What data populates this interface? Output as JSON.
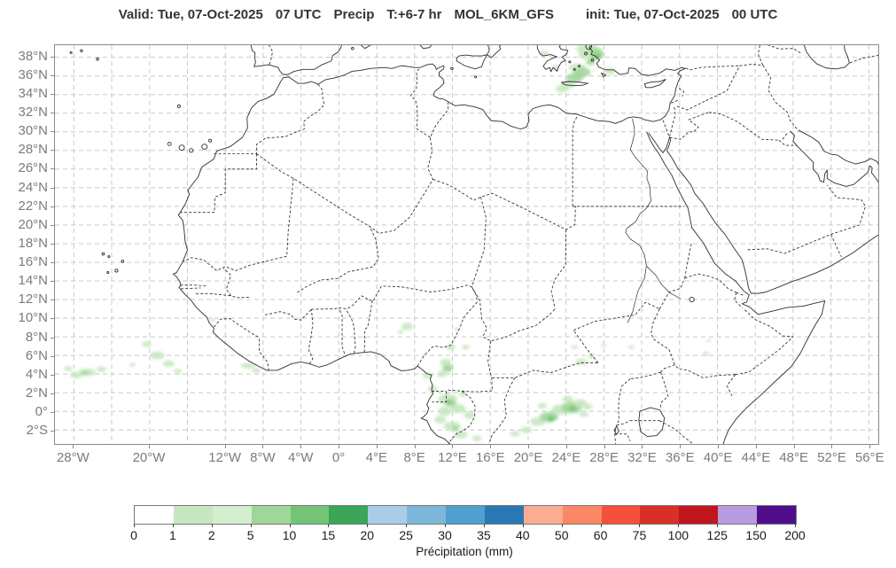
{
  "header": {
    "title_parts": [
      "Valid: Tue, 07-Oct-2025",
      "07 UTC",
      "Precip",
      "T:+6-7 hr",
      "MOL_6KM_GFS",
      "init: Tue, 07-Oct-2025",
      "00 UTC"
    ]
  },
  "map": {
    "lon_min": -30,
    "lon_max": 57,
    "lat_min": -3.5,
    "lat_max": 39.3,
    "grid_lons": [
      -28,
      -24,
      -20,
      -16,
      -12,
      -8,
      -4,
      0,
      4,
      8,
      12,
      16,
      20,
      24,
      28,
      32,
      36,
      40,
      44,
      48,
      52,
      56
    ],
    "grid_lats": [
      38,
      36,
      34,
      32,
      30,
      28,
      26,
      24,
      22,
      20,
      18,
      16,
      14,
      12,
      10,
      8,
      6,
      4,
      2,
      0,
      -2
    ],
    "x_ticks": [
      {
        "label": "28°W",
        "lon": -28
      },
      {
        "label": "20°W",
        "lon": -20
      },
      {
        "label": "12°W",
        "lon": -12
      },
      {
        "label": "8°W",
        "lon": -8
      },
      {
        "label": "4°W",
        "lon": -4
      },
      {
        "label": "0°",
        "lon": 0
      },
      {
        "label": "4°E",
        "lon": 4
      },
      {
        "label": "8°E",
        "lon": 8
      },
      {
        "label": "12°E",
        "lon": 12
      },
      {
        "label": "16°E",
        "lon": 16
      },
      {
        "label": "20°E",
        "lon": 20
      },
      {
        "label": "24°E",
        "lon": 24
      },
      {
        "label": "28°E",
        "lon": 28
      },
      {
        "label": "32°E",
        "lon": 32
      },
      {
        "label": "36°E",
        "lon": 36
      },
      {
        "label": "40°E",
        "lon": 40
      },
      {
        "label": "44°E",
        "lon": 44
      },
      {
        "label": "48°E",
        "lon": 48
      },
      {
        "label": "52°E",
        "lon": 52
      },
      {
        "label": "56°E",
        "lon": 56
      }
    ],
    "y_ticks": [
      {
        "label": "38°N",
        "lat": 38
      },
      {
        "label": "36°N",
        "lat": 36
      },
      {
        "label": "34°N",
        "lat": 34
      },
      {
        "label": "32°N",
        "lat": 32
      },
      {
        "label": "30°N",
        "lat": 30
      },
      {
        "label": "28°N",
        "lat": 28
      },
      {
        "label": "26°N",
        "lat": 26
      },
      {
        "label": "24°N",
        "lat": 24
      },
      {
        "label": "22°N",
        "lat": 22
      },
      {
        "label": "20°N",
        "lat": 20
      },
      {
        "label": "18°N",
        "lat": 18
      },
      {
        "label": "16°N",
        "lat": 16
      },
      {
        "label": "14°N",
        "lat": 14
      },
      {
        "label": "12°N",
        "lat": 12
      },
      {
        "label": "10°N",
        "lat": 10
      },
      {
        "label": "8°N",
        "lat": 8
      },
      {
        "label": "6°N",
        "lat": 6
      },
      {
        "label": "4°N",
        "lat": 4
      },
      {
        "label": "2°N",
        "lat": 2
      },
      {
        "label": "0°",
        "lat": 0
      },
      {
        "label": "2°S",
        "lat": -2
      }
    ],
    "colors": {
      "coastline": "#2e2e2e",
      "border": "#2a2a2a",
      "grid": "#c8c8c8",
      "frame": "#8a8a8a",
      "tick_text": "#7b7b7b"
    }
  },
  "colorbar": {
    "label": "Précipitation (mm)",
    "ticks": [
      "0",
      "1",
      "2",
      "5",
      "10",
      "15",
      "20",
      "25",
      "30",
      "35",
      "40",
      "50",
      "60",
      "75",
      "100",
      "125",
      "150",
      "200"
    ],
    "segment_colors": [
      "#ffffff",
      "#c7e7c0",
      "#d5eecd",
      "#9fd699",
      "#74c476",
      "#3ba558",
      "#a9cde7",
      "#7db8da",
      "#4f9fd0",
      "#2a77b5",
      "#fcac90",
      "#fb8767",
      "#f4503a",
      "#da2f27",
      "#c0161d",
      "#b79ce0",
      "#500e8c"
    ]
  },
  "chart_data": {
    "type": "heatmap",
    "title": "Precipitation forecast map, MOL_6KM_GFS, T:+6-7 hr",
    "units": "mm",
    "scale_bounds": [
      0,
      1,
      2,
      5,
      10,
      15,
      20,
      25,
      30,
      35,
      40,
      50,
      60,
      75,
      100,
      125,
      150,
      200
    ],
    "legend_position": "bottom",
    "cells_format": [
      "lon",
      "lat",
      "rx_deg",
      "ry_deg",
      "color_index"
    ],
    "cells": [
      [
        26.3,
        38.9,
        1.2,
        0.55,
        1
      ],
      [
        27.1,
        38.4,
        0.9,
        0.6,
        3
      ],
      [
        27.3,
        38.1,
        0.45,
        0.3,
        4
      ],
      [
        26.0,
        38.2,
        0.7,
        0.4,
        1
      ],
      [
        25.2,
        36.9,
        0.9,
        0.45,
        1
      ],
      [
        26.6,
        37.5,
        0.5,
        0.35,
        3
      ],
      [
        25.7,
        36.4,
        0.9,
        0.5,
        3
      ],
      [
        24.9,
        35.8,
        0.9,
        0.5,
        3
      ],
      [
        24.2,
        35.1,
        0.8,
        0.45,
        1
      ],
      [
        23.6,
        34.6,
        0.7,
        0.4,
        1
      ],
      [
        21.7,
        38.4,
        0.5,
        0.3,
        1
      ],
      [
        22.9,
        36.9,
        0.4,
        0.25,
        1
      ],
      [
        28.6,
        36.5,
        0.6,
        0.35,
        1
      ],
      [
        -28.6,
        4.6,
        0.45,
        0.25,
        1
      ],
      [
        -27.7,
        3.9,
        0.7,
        0.35,
        1
      ],
      [
        -26.6,
        4.2,
        0.9,
        0.4,
        1
      ],
      [
        -26.8,
        4.15,
        0.35,
        0.2,
        3
      ],
      [
        -25.1,
        4.5,
        0.5,
        0.3,
        1
      ],
      [
        -20.3,
        7.2,
        0.5,
        0.3,
        1
      ],
      [
        -19.2,
        6.0,
        0.8,
        0.4,
        1
      ],
      [
        -18.0,
        5.1,
        0.6,
        0.35,
        1
      ],
      [
        -17.0,
        4.3,
        0.45,
        0.25,
        1
      ],
      [
        -21.8,
        5.0,
        0.3,
        0.2,
        1
      ],
      [
        -9.6,
        4.9,
        0.8,
        0.3,
        1
      ],
      [
        -8.7,
        4.4,
        0.5,
        0.25,
        1
      ],
      [
        -13.4,
        9.8,
        0.3,
        0.2,
        1
      ],
      [
        7.2,
        9.1,
        0.6,
        0.4,
        1
      ],
      [
        6.5,
        8.5,
        0.3,
        0.2,
        1
      ],
      [
        12.5,
        8.8,
        0.3,
        0.2,
        1
      ],
      [
        11.8,
        6.9,
        0.5,
        0.35,
        1
      ],
      [
        13.4,
        6.9,
        0.4,
        0.25,
        1
      ],
      [
        11.3,
        5.2,
        0.6,
        0.45,
        1
      ],
      [
        11.5,
        4.6,
        0.55,
        0.4,
        3
      ],
      [
        10.9,
        4.0,
        0.5,
        0.35,
        1
      ],
      [
        9.4,
        3.8,
        0.5,
        0.3,
        1
      ],
      [
        9.9,
        2.4,
        0.5,
        0.35,
        1
      ],
      [
        11.5,
        1.3,
        1.0,
        0.6,
        1
      ],
      [
        11.8,
        0.9,
        0.6,
        0.4,
        3
      ],
      [
        11.6,
        1.0,
        0.3,
        0.2,
        4
      ],
      [
        12.6,
        0.3,
        0.8,
        0.5,
        1
      ],
      [
        11.2,
        0.0,
        0.7,
        0.5,
        1
      ],
      [
        10.7,
        -0.9,
        0.6,
        0.4,
        1
      ],
      [
        12.0,
        -1.6,
        0.9,
        0.5,
        1
      ],
      [
        12.3,
        -1.8,
        0.35,
        0.25,
        3
      ],
      [
        12.9,
        -2.5,
        0.7,
        0.4,
        1
      ],
      [
        13.8,
        -0.4,
        0.6,
        0.4,
        1
      ],
      [
        14.6,
        -2.9,
        0.5,
        0.3,
        1
      ],
      [
        13.1,
        1.9,
        0.4,
        0.3,
        1
      ],
      [
        18.6,
        -2.4,
        0.5,
        0.3,
        1
      ],
      [
        19.8,
        -2.0,
        0.6,
        0.35,
        1
      ],
      [
        21.0,
        -1.1,
        0.8,
        0.45,
        1
      ],
      [
        22.2,
        -0.6,
        1.0,
        0.55,
        3
      ],
      [
        22.4,
        -0.8,
        0.4,
        0.3,
        4
      ],
      [
        23.5,
        0.2,
        1.0,
        0.55,
        1
      ],
      [
        24.6,
        0.4,
        1.1,
        0.6,
        3
      ],
      [
        24.7,
        0.3,
        0.4,
        0.25,
        4
      ],
      [
        25.5,
        0.9,
        0.7,
        0.4,
        1
      ],
      [
        26.3,
        0.5,
        0.5,
        0.3,
        1
      ],
      [
        24.2,
        1.3,
        0.6,
        0.35,
        1
      ],
      [
        25.9,
        -0.3,
        0.5,
        0.3,
        1
      ],
      [
        21.5,
        0.6,
        0.5,
        0.3,
        1
      ],
      [
        25.6,
        5.3,
        0.6,
        0.35,
        1
      ],
      [
        26.7,
        5.9,
        0.4,
        0.25,
        1
      ],
      [
        24.9,
        6.9,
        0.35,
        0.2,
        1
      ],
      [
        28.0,
        7.1,
        0.3,
        0.2,
        1
      ],
      [
        30.9,
        6.9,
        0.3,
        0.2,
        1
      ],
      [
        38.8,
        6.2,
        0.35,
        0.2,
        1
      ],
      [
        39.1,
        7.6,
        0.25,
        0.15,
        1
      ]
    ]
  }
}
